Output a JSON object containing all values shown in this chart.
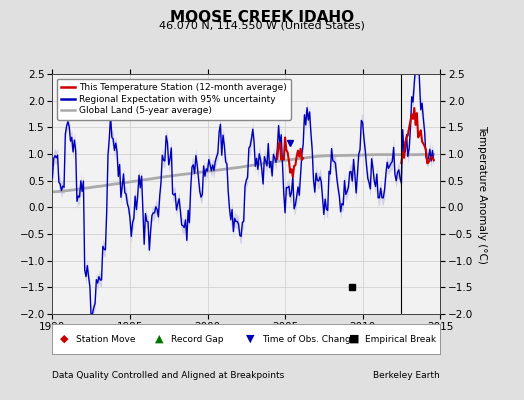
{
  "title": "MOOSE CREEK IDAHO",
  "subtitle": "46.070 N, 114.550 W (United States)",
  "ylabel": "Temperature Anomaly (°C)",
  "footer_left": "Data Quality Controlled and Aligned at Breakpoints",
  "footer_right": "Berkeley Earth",
  "xlim": [
    1990,
    2015
  ],
  "ylim": [
    -2,
    2.5
  ],
  "yticks": [
    -2,
    -1.5,
    -1,
    -0.5,
    0,
    0.5,
    1,
    1.5,
    2,
    2.5
  ],
  "xticks": [
    1990,
    1995,
    2000,
    2005,
    2010,
    2015
  ],
  "vertical_line_x": 2012.5,
  "empirical_break_x": 2009.3,
  "empirical_break_y": -1.5,
  "obs_change_x": 2005.3,
  "obs_change_y": 1.2,
  "bg_color": "#e0e0e0",
  "plot_bg_color": "#f2f2f2",
  "blue_line_color": "#0000bb",
  "blue_fill_color": "#aaaadd",
  "red_line_color": "#cc0000",
  "gray_line_color": "#aaaaaa",
  "grid_color": "#cccccc"
}
